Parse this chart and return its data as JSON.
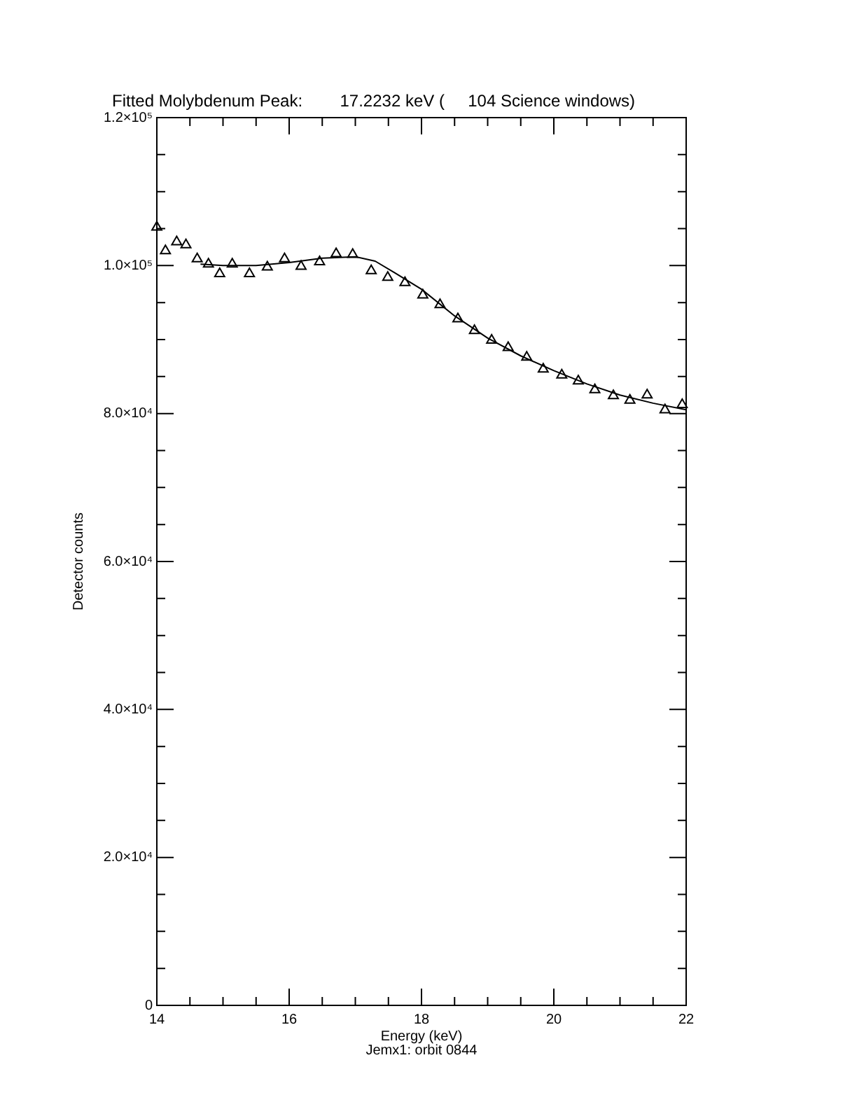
{
  "chart_data": {
    "type": "scatter",
    "title": "Fitted Molybdenum Peak:        17.2232 keV (     104 Science windows)",
    "xlabel": "Energy (keV)",
    "ylabel": "Detector counts",
    "annotations": [
      "Jemx1: orbit 0844"
    ],
    "xlim": [
      14,
      22
    ],
    "xticks": [
      14,
      {
        "value": 14.5,
        "label": null
      },
      {
        "value": 15,
        "label": null
      },
      {
        "value": 15.5,
        "label": null
      },
      16,
      {
        "value": 16.5,
        "label": null
      },
      {
        "value": 17,
        "label": null
      },
      {
        "value": 17.5,
        "label": null
      },
      18,
      {
        "value": 18.5,
        "label": null
      },
      {
        "value": 19,
        "label": null
      },
      {
        "value": 19.5,
        "label": null
      },
      20,
      {
        "value": 20.5,
        "label": null
      },
      {
        "value": 21,
        "label": null
      },
      {
        "value": 21.5,
        "label": null
      },
      22
    ],
    "ylim": [
      0,
      120000
    ],
    "yticks": [
      {
        "value": 0,
        "label": "0"
      },
      {
        "value": 5000,
        "label": null
      },
      {
        "value": 10000,
        "label": null
      },
      {
        "value": 15000,
        "label": null
      },
      {
        "value": 20000,
        "label": "2.0×10⁴"
      },
      {
        "value": 25000,
        "label": null
      },
      {
        "value": 30000,
        "label": null
      },
      {
        "value": 35000,
        "label": null
      },
      {
        "value": 40000,
        "label": "4.0×10⁴"
      },
      {
        "value": 45000,
        "label": null
      },
      {
        "value": 50000,
        "label": null
      },
      {
        "value": 55000,
        "label": null
      },
      {
        "value": 60000,
        "label": "6.0×10⁴"
      },
      {
        "value": 65000,
        "label": null
      },
      {
        "value": 70000,
        "label": null
      },
      {
        "value": 75000,
        "label": null
      },
      {
        "value": 80000,
        "label": "8.0×10⁴"
      },
      {
        "value": 85000,
        "label": null
      },
      {
        "value": 90000,
        "label": null
      },
      {
        "value": 95000,
        "label": null
      },
      {
        "value": 100000,
        "label": "1.0×10⁵"
      },
      {
        "value": 105000,
        "label": null
      },
      {
        "value": 110000,
        "label": null
      },
      {
        "value": 115000,
        "label": null
      },
      {
        "value": 120000,
        "label": "1.2×10⁵"
      }
    ],
    "marker": "triangle",
    "legend": false,
    "series": [
      {
        "color": "#000000",
        "x": [
          14,
          14.13,
          14.3,
          14.44,
          14.61,
          14.78,
          14.95,
          15.14,
          15.4,
          15.67,
          15.93,
          16.18,
          16.46,
          16.71,
          16.96,
          17.24,
          17.49,
          17.75,
          18.02,
          18.28,
          18.55,
          18.8,
          19.06,
          19.31,
          19.59,
          19.84,
          20.12,
          20.37,
          20.62,
          20.9,
          21.15,
          21.41,
          21.68,
          21.94
        ],
        "values": [
          105200,
          102000,
          103200,
          102800,
          100900,
          100200,
          98900,
          100200,
          98900,
          99800,
          100900,
          99900,
          100500,
          101600,
          101500,
          99300,
          98400,
          97700,
          96000,
          94700,
          92800,
          91200,
          89900,
          88900,
          87600,
          86000,
          85200,
          84400,
          83200,
          82400,
          81800,
          82500,
          80500,
          81200
        ]
      },
      {
        "type": "line",
        "color": "#000000",
        "marker": "none",
        "line_style": "solid",
        "x": [
          14.66,
          15,
          15.5,
          16,
          16.5,
          17,
          17.3,
          17.6,
          18,
          18.5,
          19,
          19.5,
          20,
          20.5,
          21,
          21.5,
          22
        ],
        "values": [
          100200,
          100000,
          100000,
          100400,
          101000,
          101200,
          100600,
          99000,
          96800,
          93200,
          90200,
          87800,
          85800,
          84000,
          82500,
          81400,
          80500
        ]
      }
    ]
  }
}
